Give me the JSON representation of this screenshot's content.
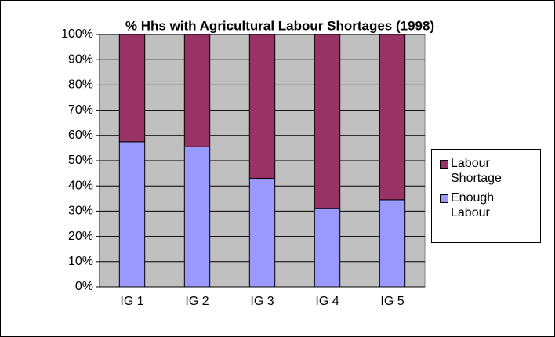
{
  "chart_data": {
    "type": "stacked_bar",
    "title": "% Hhs with Agricultural Labour Shortages (1998)",
    "categories": [
      "IG 1",
      "IG 2",
      "IG 3",
      "IG 4",
      "IG 5"
    ],
    "series": [
      {
        "name": "Enough Labour",
        "color": "#9999ff",
        "values": [
          57.5,
          55.5,
          43,
          31,
          34.5
        ]
      },
      {
        "name": "Labour Shortage",
        "color": "#993366",
        "values": [
          42.5,
          44.5,
          57,
          69,
          65.5
        ]
      }
    ],
    "ylim": [
      0,
      100
    ],
    "yticks": [
      {
        "value": 0,
        "label": "0%"
      },
      {
        "value": 10,
        "label": "10%"
      },
      {
        "value": 20,
        "label": "20%"
      },
      {
        "value": 30,
        "label": "30%"
      },
      {
        "value": 40,
        "label": "40%"
      },
      {
        "value": 50,
        "label": "50%"
      },
      {
        "value": 60,
        "label": "60%"
      },
      {
        "value": 70,
        "label": "70%"
      },
      {
        "value": 80,
        "label": "80%"
      },
      {
        "value": 90,
        "label": "90%"
      },
      {
        "value": 100,
        "label": "100%"
      }
    ],
    "grid": true,
    "legend": "right"
  }
}
